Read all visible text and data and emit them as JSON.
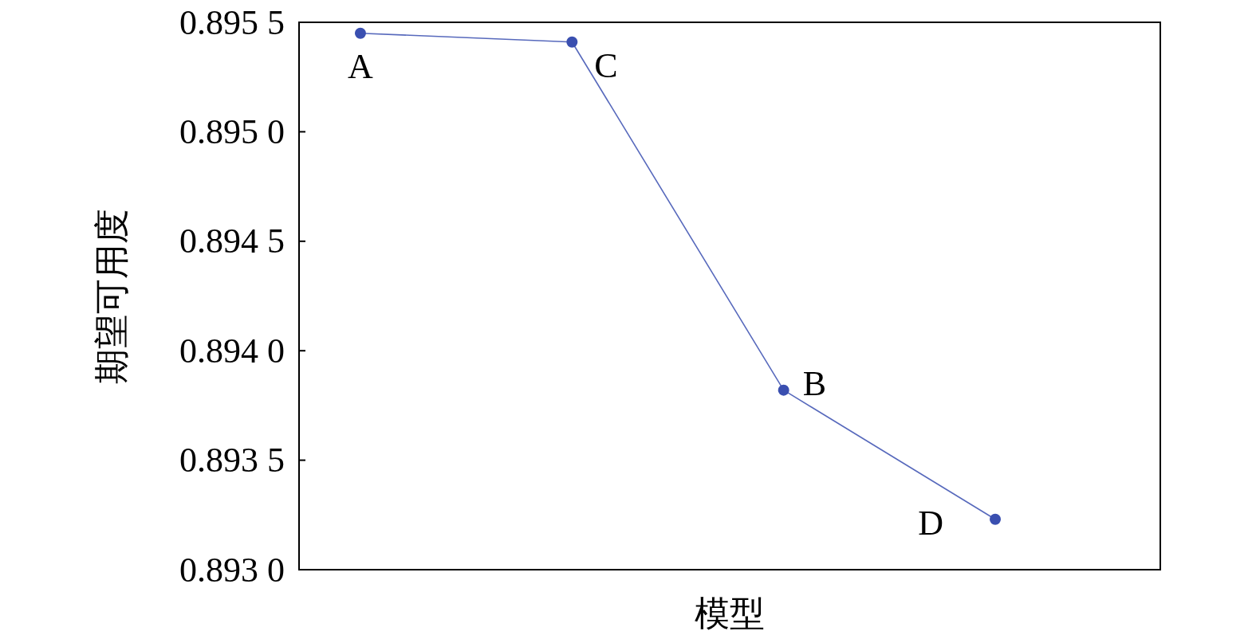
{
  "chart_data": {
    "type": "line",
    "xlabel": "模型",
    "ylabel": "期望可用度",
    "categories": [
      null,
      null,
      null,
      null
    ],
    "values": [
      0.89545,
      0.89541,
      0.89382,
      0.89323
    ],
    "color": "#3a4fb0",
    "marker": "circle",
    "grid": false,
    "tick_labels": "y",
    "ylim": [
      0.893,
      0.8955
    ],
    "yticks": [
      {
        "value": 0.893,
        "label": "0.8930"
      },
      0.8935,
      {
        "value": 0.894,
        "label": "0.8940"
      },
      0.8945,
      {
        "value": 0.895,
        "label": "0.8950"
      },
      0.8955
    ],
    "legend": false,
    "annotations": [
      "A",
      "C",
      "B",
      "D"
    ]
  }
}
